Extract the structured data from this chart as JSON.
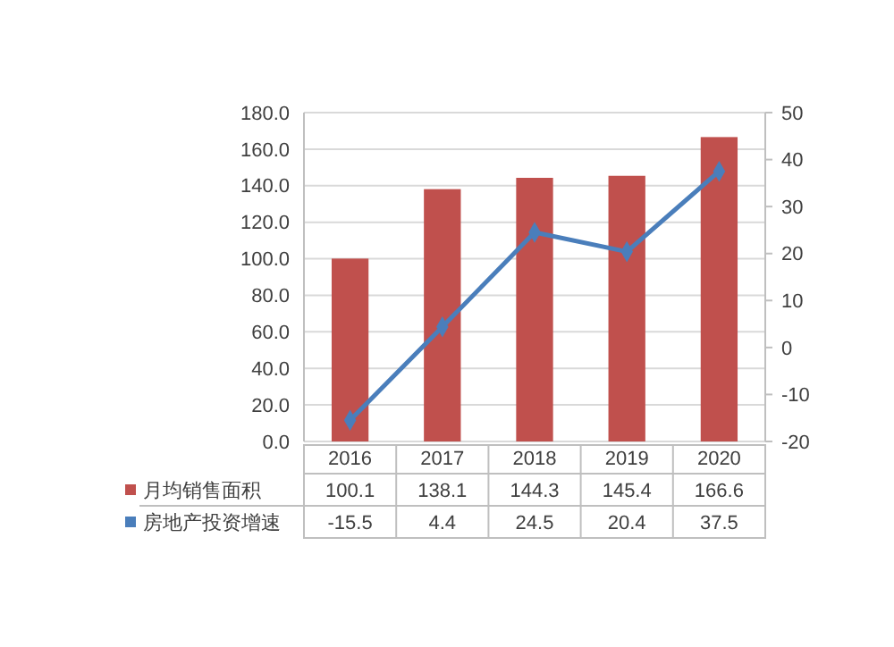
{
  "chart_data": {
    "type": "bar",
    "categories": [
      "2016",
      "2017",
      "2018",
      "2019",
      "2020"
    ],
    "series": [
      {
        "name": "月均销售面积",
        "color": "#c0504d",
        "values": [
          100.1,
          138.1,
          144.3,
          145.4,
          166.6
        ]
      },
      {
        "name": "房地产投资增速",
        "type": "line",
        "axis": "y2",
        "color": "#4a7ebb",
        "marker": "diamond",
        "values": [
          -15.5,
          4.4,
          24.5,
          20.4,
          37.5
        ]
      }
    ],
    "ylim": [
      0,
      180
    ],
    "yticks": [
      {
        "value": 0,
        "label": "0.0"
      },
      {
        "value": 20,
        "label": "20.0"
      },
      {
        "value": 40,
        "label": "40.0"
      },
      {
        "value": 60,
        "label": "60.0"
      },
      {
        "value": 80,
        "label": "80.0"
      },
      {
        "value": 100,
        "label": "100.0"
      },
      {
        "value": 120,
        "label": "120.0"
      },
      {
        "value": 140,
        "label": "140.0"
      },
      {
        "value": 160,
        "label": "160.0"
      },
      {
        "value": 180,
        "label": "180.0"
      }
    ],
    "y2lim": [
      -20,
      50
    ],
    "y2ticks": [
      -20,
      -10,
      0,
      10,
      20,
      30,
      40,
      50
    ],
    "grid": "y",
    "data_labels": true,
    "legend": "bottom"
  }
}
